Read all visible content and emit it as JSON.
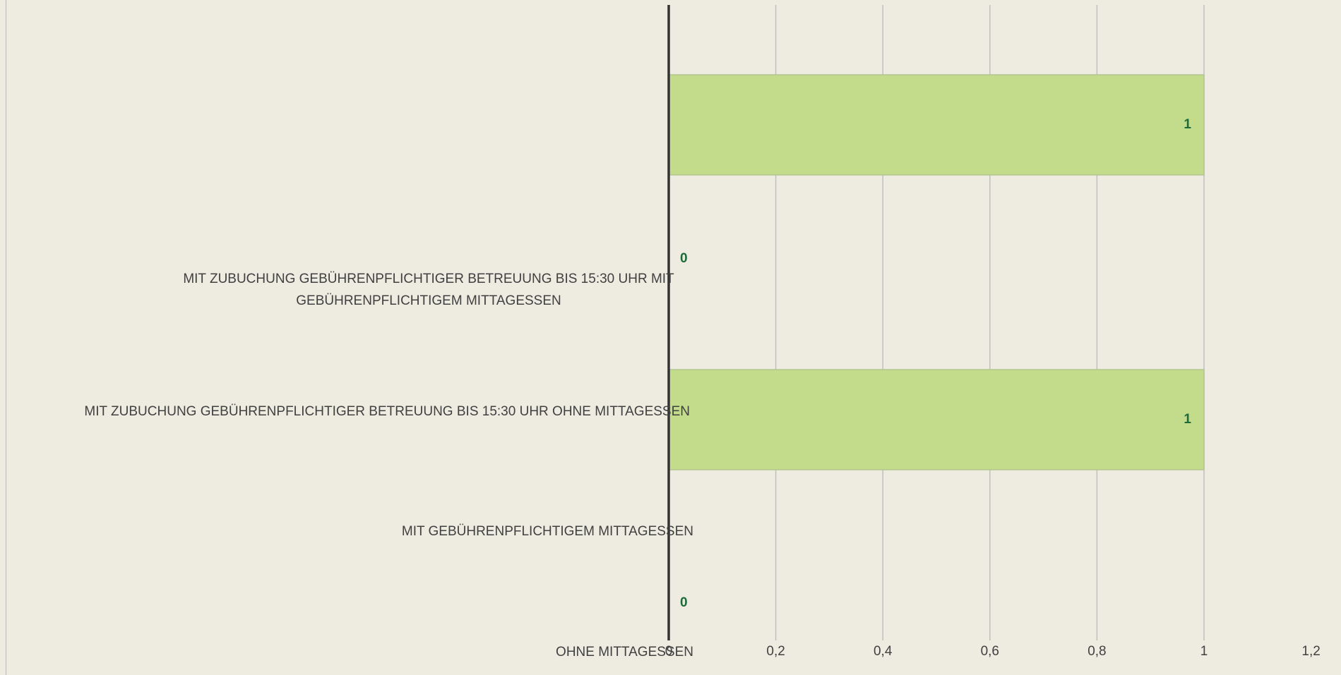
{
  "chart_data": {
    "type": "bar",
    "orientation": "horizontal",
    "categories": [
      "MIT ZUBUCHUNG GEBÜHRENPFLICHTIGER BETREUUNG BIS 15:30 UHR MIT GEBÜHRENPFLICHTIGEM MITTAGESSEN",
      "MIT ZUBUCHUNG GEBÜHRENPFLICHTIGER BETREUUNG BIS 15:30 UHR OHNE MITTAGESSEN",
      "MIT GEBÜHRENPFLICHTIGEM MITTAGESSEN",
      "OHNE MITTAGESSEN"
    ],
    "values": [
      1,
      0,
      1,
      0
    ],
    "color": "#c3dc8c",
    "xlim": [
      0,
      1.2
    ],
    "xticks": [
      0,
      {
        "value": 0.2,
        "label": "0,2"
      },
      {
        "value": 0.4,
        "label": "0,4"
      },
      {
        "value": 0.6,
        "label": "0,6"
      },
      {
        "value": 0.8,
        "label": "0,8"
      },
      1,
      {
        "value": 1.2,
        "label": "1,2"
      }
    ],
    "grid": true
  }
}
